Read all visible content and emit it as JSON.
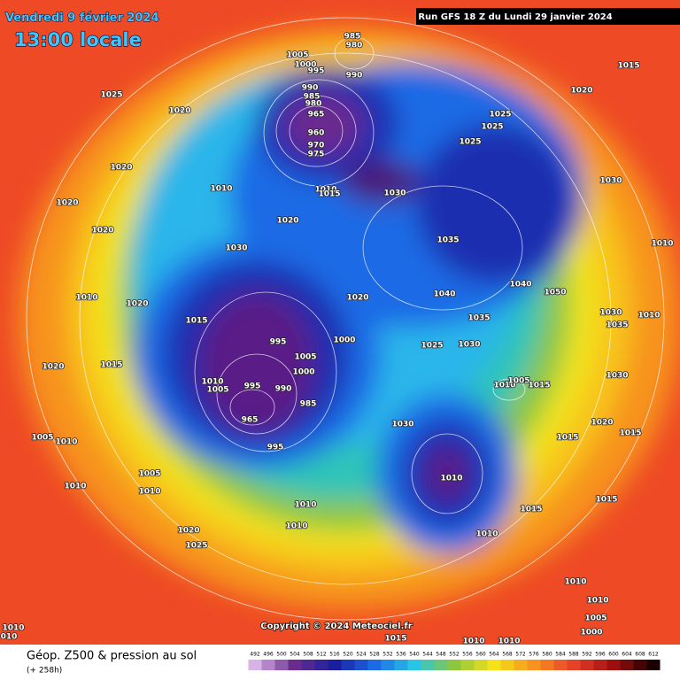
{
  "header": {
    "date": "Vendredi 9 février 2024",
    "time": "13:00 locale",
    "run": "Run GFS 18 Z du Lundi 29 janvier 2024"
  },
  "copyright": "Copyright © 2024 Meteociel.fr",
  "footer": {
    "title": "Géop. Z500 & pression au sol",
    "lead": "(+ 258h)"
  },
  "colorbar": {
    "ticks": [
      492,
      496,
      500,
      504,
      508,
      512,
      516,
      520,
      524,
      528,
      532,
      536,
      540,
      544,
      548,
      552,
      556,
      560,
      564,
      568,
      572,
      576,
      580,
      584,
      588,
      592,
      596,
      600,
      604,
      608,
      612
    ]
  },
  "isobar_labels": [
    "985",
    "980",
    "1005",
    "1000",
    "995",
    "990",
    "1015",
    "1025",
    "1020",
    "1020",
    "990",
    "985",
    "980",
    "965",
    "960",
    "970",
    "975",
    "1025",
    "1025",
    "1025",
    "1020",
    "1030",
    "1010",
    "1010",
    "1015",
    "1030",
    "1020",
    "1020",
    "1020",
    "1035",
    "1030",
    "1010",
    "1040",
    "1050",
    "1010",
    "1020",
    "1020",
    "1040",
    "1030",
    "1010",
    "1015",
    "1035",
    "1035",
    "995",
    "1000",
    "1025",
    "1030",
    "1020",
    "1015",
    "1005",
    "1000",
    "1010",
    "1005",
    "995",
    "990",
    "1010",
    "1005",
    "1015",
    "1030",
    "985",
    "965",
    "1030",
    "1020",
    "1015",
    "1005",
    "1010",
    "1015",
    "995",
    "1010",
    "1005",
    "1010",
    "1010",
    "1015",
    "1010",
    "1015",
    "1010",
    "1010",
    "1020",
    "1025",
    "1010",
    "1010",
    "1005",
    "1000",
    "1010",
    "010",
    "1015",
    "1010",
    "1010"
  ]
}
